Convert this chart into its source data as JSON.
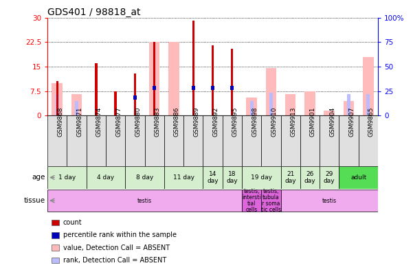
{
  "title": "GDS401 / 98818_at",
  "samples": [
    "GSM9868",
    "GSM9871",
    "GSM9874",
    "GSM9877",
    "GSM9880",
    "GSM9883",
    "GSM9886",
    "GSM9889",
    "GSM9892",
    "GSM9895",
    "GSM9898",
    "GSM9910",
    "GSM9913",
    "GSM9901",
    "GSM9904",
    "GSM9907",
    "GSM9865"
  ],
  "red_bars": [
    10.5,
    0,
    16.0,
    7.5,
    13.0,
    22.5,
    0,
    29.0,
    21.5,
    20.5,
    0,
    0,
    0,
    0,
    0,
    0,
    0
  ],
  "blue_bars": [
    0,
    0,
    0,
    0,
    5.5,
    8.5,
    0,
    8.5,
    8.5,
    8.5,
    0,
    0,
    0,
    0,
    0,
    0,
    0
  ],
  "pink_bars": [
    10.0,
    6.5,
    0,
    0,
    0,
    22.5,
    22.5,
    0,
    0,
    0,
    5.5,
    14.5,
    6.5,
    7.5,
    1.5,
    4.5,
    18.0
  ],
  "lightblue_bars": [
    6.5,
    4.5,
    0,
    0,
    0,
    0,
    0,
    0,
    0,
    0,
    4.5,
    7.0,
    0,
    0,
    0,
    6.5,
    6.5
  ],
  "age_groups": [
    {
      "label": "1 day",
      "start": 0,
      "end": 2,
      "color": "#d4eece"
    },
    {
      "label": "4 day",
      "start": 2,
      "end": 4,
      "color": "#d4eece"
    },
    {
      "label": "8 day",
      "start": 4,
      "end": 6,
      "color": "#d4eece"
    },
    {
      "label": "11 day",
      "start": 6,
      "end": 8,
      "color": "#d4eece"
    },
    {
      "label": "14\nday",
      "start": 8,
      "end": 9,
      "color": "#d4eece"
    },
    {
      "label": "18\nday",
      "start": 9,
      "end": 10,
      "color": "#d4eece"
    },
    {
      "label": "19 day",
      "start": 10,
      "end": 12,
      "color": "#d4eece"
    },
    {
      "label": "21\nday",
      "start": 12,
      "end": 13,
      "color": "#d4eece"
    },
    {
      "label": "26\nday",
      "start": 13,
      "end": 14,
      "color": "#d4eece"
    },
    {
      "label": "29\nday",
      "start": 14,
      "end": 15,
      "color": "#d4eece"
    },
    {
      "label": "adult",
      "start": 15,
      "end": 17,
      "color": "#55dd55"
    }
  ],
  "tissue_groups": [
    {
      "label": "testis",
      "start": 0,
      "end": 10,
      "color": "#f0aaee"
    },
    {
      "label": "testis,\nintersti\ntial\ncells",
      "start": 10,
      "end": 11,
      "color": "#dd66dd"
    },
    {
      "label": "testis,\ntubula\nr soma\ntic cells",
      "start": 11,
      "end": 12,
      "color": "#dd66dd"
    },
    {
      "label": "testis",
      "start": 12,
      "end": 17,
      "color": "#f0aaee"
    }
  ],
  "ylim_left": [
    0,
    30
  ],
  "ylim_right": [
    0,
    100
  ],
  "yticks_left": [
    0,
    7.5,
    15.0,
    22.5,
    30
  ],
  "ytick_labels_left": [
    "0",
    "7.5",
    "15",
    "22.5",
    "30"
  ],
  "yticks_right": [
    0,
    25,
    50,
    75,
    100
  ],
  "ytick_labels_right": [
    "0",
    "25",
    "50",
    "75",
    "100%"
  ],
  "red_color": "#cc0000",
  "blue_color": "#0000bb",
  "pink_color": "#ffbbbb",
  "lightblue_color": "#bbbbff",
  "bg_color": "#ffffff",
  "title_fontsize": 10,
  "tick_fontsize": 7.5,
  "legend_items": [
    {
      "color": "#cc0000",
      "label": "count"
    },
    {
      "color": "#0000bb",
      "label": "percentile rank within the sample"
    },
    {
      "color": "#ffbbbb",
      "label": "value, Detection Call = ABSENT"
    },
    {
      "color": "#bbbbff",
      "label": "rank, Detection Call = ABSENT"
    }
  ]
}
